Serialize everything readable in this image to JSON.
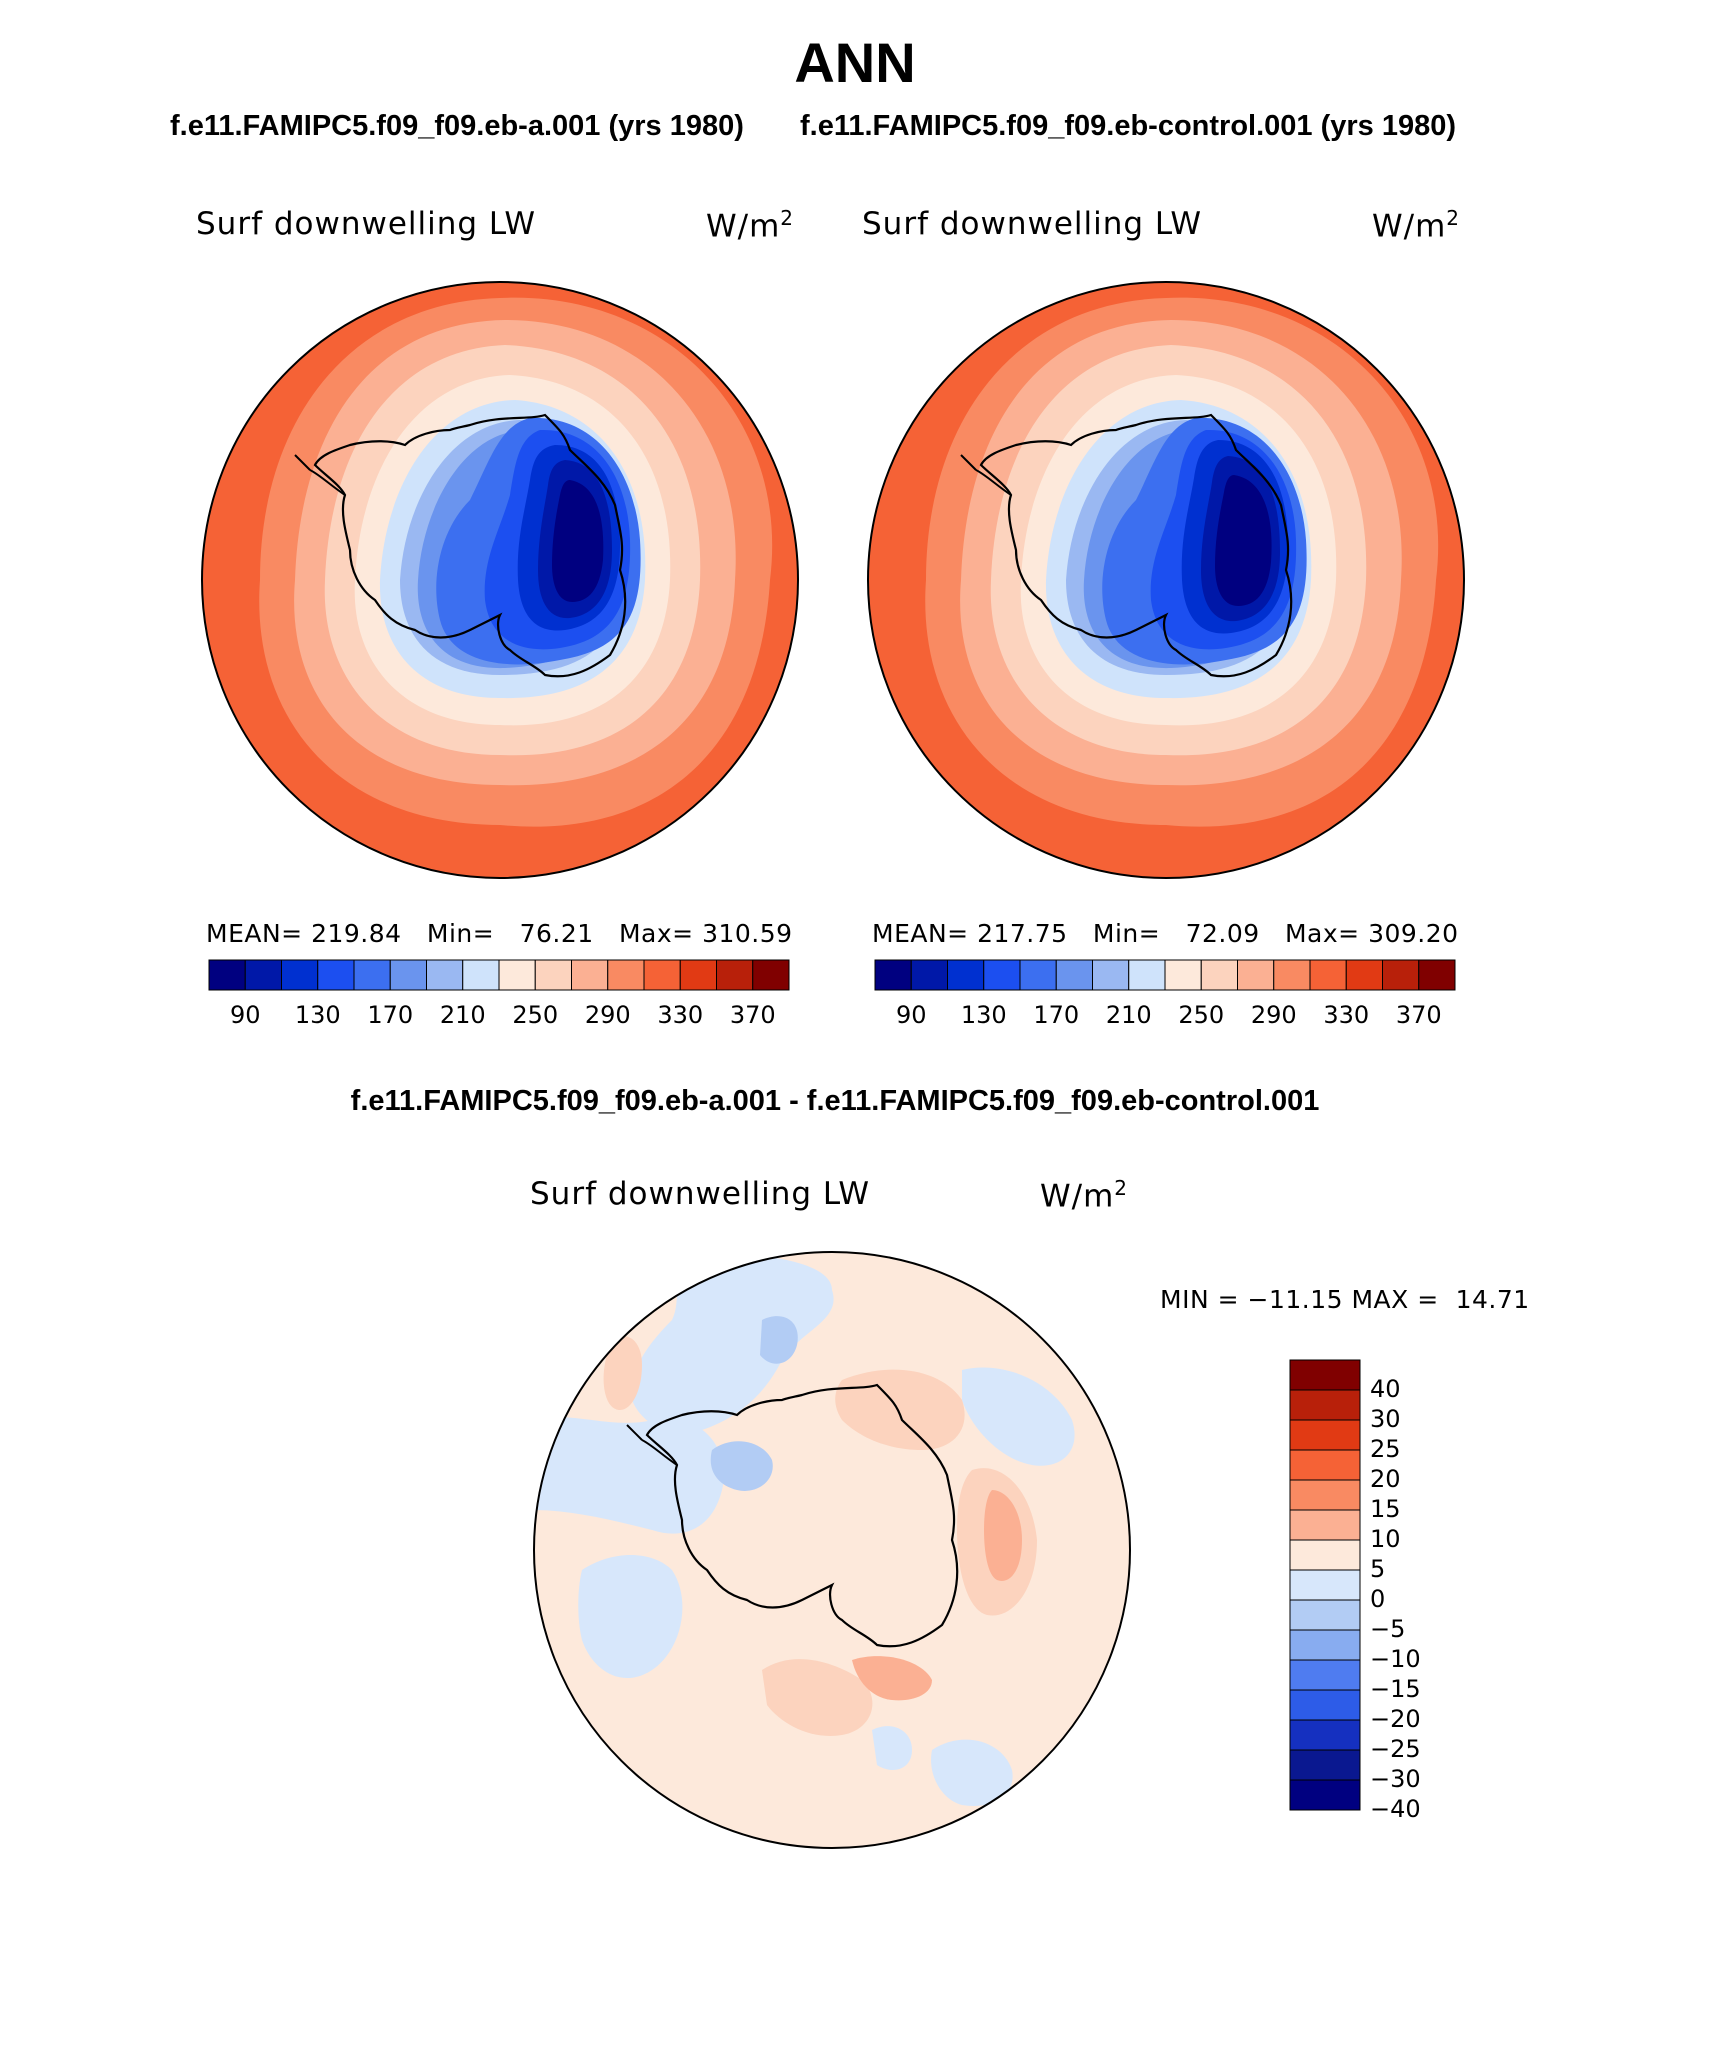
{
  "title": "ANN",
  "panel_a": {
    "case_title": "f.e11.FAMIPC5.f09_f09.eb-a.001 (yrs 1980)",
    "variable": "Surf downwelling LW",
    "units_base": "W/m",
    "units_exp": "2",
    "mean_label": "MEAN=",
    "mean": "219.84",
    "min_label": "Min=",
    "min": "76.21",
    "max_label": "Max=",
    "max": "310.59"
  },
  "panel_b": {
    "case_title": "f.e11.FAMIPC5.f09_f09.eb-control.001 (yrs 1980)",
    "variable": "Surf downwelling LW",
    "units_base": "W/m",
    "units_exp": "2",
    "mean_label": "MEAN=",
    "mean": "217.75",
    "min_label": "Min=",
    "min": "72.09",
    "max_label": "Max=",
    "max": "309.20"
  },
  "panel_diff": {
    "case_title": "f.e11.FAMIPC5.f09_f09.eb-a.001 - f.e11.FAMIPC5.f09_f09.eb-control.001",
    "variable": "Surf downwelling LW",
    "units_base": "W/m",
    "units_exp": "2",
    "min_label": "MIN =",
    "min": "−11.15",
    "max_label": "MAX =",
    "max": "14.71"
  },
  "abs_colorbar": {
    "colors": [
      "#000080",
      "#0018a8",
      "#0030d0",
      "#1c4ff0",
      "#3c6ff0",
      "#6a94ee",
      "#9ab8f2",
      "#cfe3fb",
      "#fde9db",
      "#fcd3be",
      "#fbb093",
      "#f98a62",
      "#f56236",
      "#e13a14",
      "#b8200a",
      "#800000"
    ],
    "tick_labels": [
      "90",
      "130",
      "170",
      "210",
      "250",
      "290",
      "330",
      "370"
    ]
  },
  "diff_colorbar": {
    "colors_top_to_bottom": [
      "#800000",
      "#b8200a",
      "#e13a14",
      "#f56236",
      "#f98a62",
      "#fbb093",
      "#fde9db",
      "#d7e7fb",
      "#b2ccf4",
      "#88acf0",
      "#4f7cf0",
      "#2d5ce8",
      "#1530c0",
      "#0a1890",
      "#000080"
    ],
    "tick_labels_top_to_bottom": [
      "40",
      "30",
      "25",
      "20",
      "15",
      "10",
      "5",
      "0",
      "−5",
      "−10",
      "−15",
      "−20",
      "−25",
      "−30",
      "−40"
    ]
  }
}
